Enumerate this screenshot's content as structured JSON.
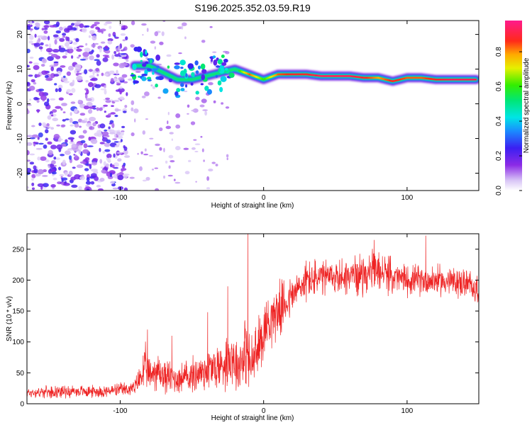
{
  "title": "S196.2025.352.03.59.R19",
  "chart_data": [
    {
      "type": "heatmap",
      "name": "spectrogram",
      "xlabel": "Height of straight line (km)",
      "ylabel": "Frequency (Hz)",
      "xlim": [
        -165,
        150
      ],
      "ylim": [
        -25,
        24
      ],
      "xticks": [
        -100,
        0,
        100
      ],
      "yticks": [
        -20,
        -10,
        0,
        10,
        20
      ],
      "xtick_labels": [
        "-100",
        "0",
        "100"
      ],
      "ytick_labels": [
        "-20",
        "-10",
        "0",
        "10",
        "20"
      ],
      "colorbar": {
        "label": "Normalized spectral amplitude",
        "range": [
          0,
          0.98
        ],
        "ticks": [
          0.0,
          0.2,
          0.4,
          0.6,
          0.8
        ],
        "tick_labels": [
          "0.0",
          "0.2",
          "0.4",
          "0.6",
          "0.8"
        ],
        "colormap": "rainbow (white-violet-blue-cyan-green-yellow-orange-red-magenta)"
      },
      "noise_region_x": [
        -165,
        -95
      ],
      "ridge": {
        "x": [
          -90,
          -80,
          -70,
          -60,
          -50,
          -40,
          -30,
          -20,
          -10,
          0,
          10,
          20,
          30,
          40,
          50,
          60,
          70,
          80,
          90,
          100,
          110,
          120,
          130,
          140,
          148
        ],
        "freq_hz": [
          11,
          11,
          9,
          7,
          7,
          8,
          9,
          10,
          8.5,
          7,
          8.5,
          8.5,
          8.5,
          8,
          8,
          8,
          7.5,
          7.5,
          6.5,
          7.5,
          7.5,
          7,
          7,
          7,
          7
        ],
        "amplitude": [
          0.45,
          0.5,
          0.35,
          0.5,
          0.55,
          0.5,
          0.45,
          0.5,
          0.85,
          0.6,
          0.85,
          0.9,
          0.9,
          0.95,
          0.95,
          0.95,
          0.9,
          0.8,
          0.9,
          0.85,
          0.85,
          0.9,
          0.95,
          0.95,
          0.95
        ]
      }
    },
    {
      "type": "line",
      "name": "snr",
      "color": "#ee2222",
      "xlabel": "Height of straight line (km)",
      "ylabel": "SNR (10 * v/v)",
      "xlim": [
        -165,
        150
      ],
      "ylim": [
        0,
        275
      ],
      "xticks": [
        -100,
        0,
        100
      ],
      "yticks": [
        0,
        50,
        100,
        150,
        200,
        250
      ],
      "xtick_labels": [
        "-100",
        "0",
        "100"
      ],
      "ytick_labels": [
        "0",
        "50",
        "100",
        "150",
        "200",
        "250"
      ],
      "envelope": {
        "x": [
          -165,
          -140,
          -110,
          -90,
          -82,
          -80,
          -75,
          -70,
          -60,
          -50,
          -40,
          -30,
          -22,
          -18,
          -12,
          -10,
          -5,
          0,
          5,
          10,
          20,
          30,
          50,
          70,
          80,
          90,
          100,
          120,
          140,
          150
        ],
        "mean": [
          18,
          20,
          20,
          25,
          60,
          45,
          55,
          45,
          40,
          45,
          55,
          60,
          80,
          60,
          90,
          60,
          80,
          120,
          140,
          150,
          175,
          200,
          205,
          210,
          215,
          205,
          200,
          200,
          195,
          185
        ],
        "spread": [
          10,
          12,
          12,
          15,
          45,
          35,
          40,
          35,
          30,
          35,
          45,
          50,
          60,
          55,
          70,
          65,
          60,
          60,
          55,
          55,
          40,
          40,
          35,
          40,
          40,
          35,
          30,
          30,
          30,
          30
        ]
      },
      "spikes": [
        {
          "x": -81,
          "y": 120
        },
        {
          "x": -64,
          "y": 110
        },
        {
          "x": -39,
          "y": 148
        },
        {
          "x": -25,
          "y": 190
        },
        {
          "x": -11,
          "y": 275
        },
        {
          "x": 32,
          "y": 230
        },
        {
          "x": 77,
          "y": 265
        },
        {
          "x": 113,
          "y": 272
        }
      ]
    }
  ]
}
